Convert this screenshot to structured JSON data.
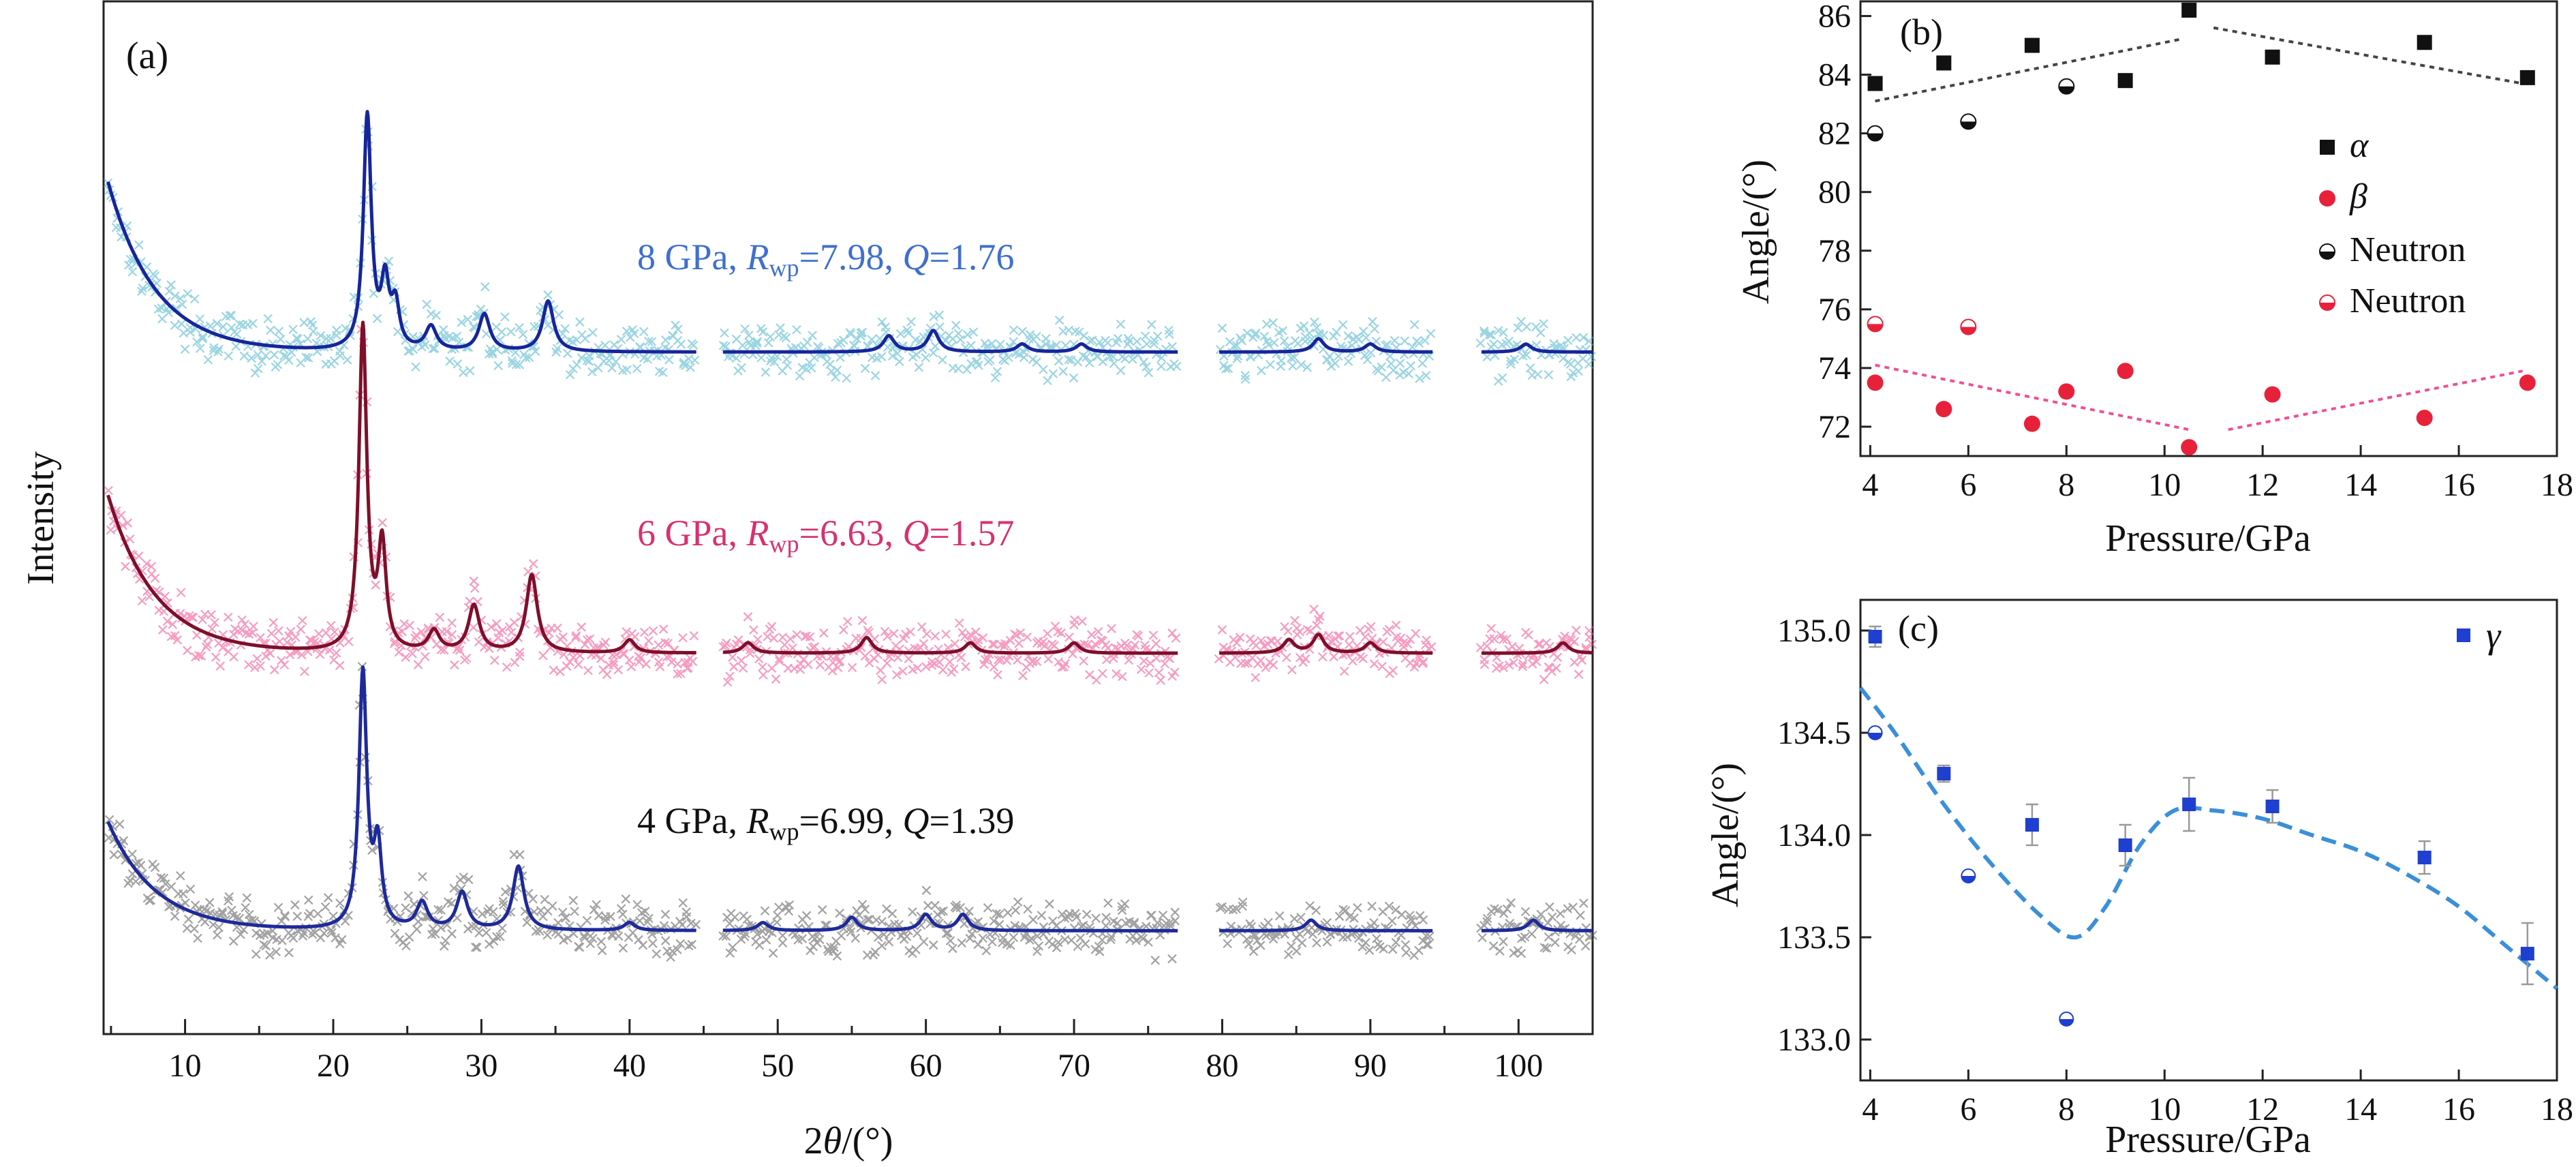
{
  "chart_data": [
    {
      "panel": "(a)",
      "type": "line",
      "xlabel_prefix": "2",
      "xlabel_var": "θ",
      "xlabel_suffix": "/(°)",
      "ylabel": "Intensity",
      "xlim": [
        4.5,
        105
      ],
      "xticks": [
        "10",
        "20",
        "30",
        "40",
        "50",
        "60",
        "70",
        "80",
        "90",
        "100"
      ],
      "series": [
        {
          "name": "8 GPa",
          "rwp": "7.98",
          "q": "1.76",
          "fit_color": "#17259a",
          "obs_color": "#49b3c9",
          "label_color": "#3f6fd0",
          "segments": [
            [
              4.8,
              44.5
            ],
            [
              46.3,
              77
            ],
            [
              79.8,
              94.2
            ],
            [
              97.5,
              105
            ]
          ],
          "peaks": [
            [
              22.3,
              88
            ],
            [
              23.5,
              24
            ],
            [
              24.2,
              16
            ],
            [
              26.6,
              9
            ],
            [
              30.2,
              14
            ],
            [
              34.5,
              19
            ],
            [
              57.5,
              6
            ],
            [
              60.5,
              8
            ],
            [
              66.5,
              3
            ],
            [
              70.5,
              3
            ],
            [
              86.5,
              5
            ],
            [
              90,
              3
            ],
            [
              100.5,
              3
            ]
          ],
          "bg_start": 70,
          "bg_floor": 6
        },
        {
          "name": "6 GPa",
          "rwp": "6.63",
          "q": "1.57",
          "fit_color": "#7e0f2a",
          "obs_color": "#ee4a8c",
          "label_color": "#d8316f",
          "segments": [
            [
              4.8,
              44.5
            ],
            [
              46.3,
              77
            ],
            [
              79.8,
              94.2
            ],
            [
              97.5,
              105
            ]
          ],
          "peaks": [
            [
              22.0,
              125
            ],
            [
              23.3,
              40
            ],
            [
              26.8,
              8
            ],
            [
              29.5,
              18
            ],
            [
              33.4,
              30
            ],
            [
              40,
              5
            ],
            [
              48,
              4
            ],
            [
              56,
              6
            ],
            [
              63,
              4
            ],
            [
              70,
              4
            ],
            [
              84.5,
              5
            ],
            [
              86.5,
              7
            ],
            [
              90,
              4
            ],
            [
              103,
              4
            ]
          ],
          "bg_start": 68,
          "bg_floor": 7
        },
        {
          "name": "4 GPa",
          "rwp": "6.99",
          "q": "1.39",
          "fit_color": "#1e2a9a",
          "obs_color": "#555555",
          "label_color": "#111111",
          "segments": [
            [
              4.8,
              44.5
            ],
            [
              46.3,
              77
            ],
            [
              79.8,
              94.2
            ],
            [
              97.5,
              105
            ]
          ],
          "peaks": [
            [
              22.0,
              96
            ],
            [
              23.0,
              30
            ],
            [
              26.0,
              10
            ],
            [
              28.7,
              14
            ],
            [
              32.5,
              24
            ],
            [
              40,
              3
            ],
            [
              49,
              3
            ],
            [
              55,
              5
            ],
            [
              60,
              6
            ],
            [
              62.5,
              6
            ],
            [
              86,
              4
            ],
            [
              101,
              4
            ]
          ],
          "bg_start": 46,
          "bg_floor": 5
        }
      ]
    },
    {
      "panel": "(b)",
      "type": "scatter",
      "xlabel": "Pressure/GPa",
      "ylabel": "Angle/(°)",
      "xlim": [
        3.8,
        18
      ],
      "ylim": [
        71,
        86.5
      ],
      "xticks": [
        "4",
        "6",
        "8",
        "10",
        "12",
        "14",
        "16",
        "18"
      ],
      "yticks": [
        "72",
        "74",
        "76",
        "78",
        "80",
        "82",
        "84",
        "86"
      ],
      "series": [
        {
          "name": "α",
          "marker": "square",
          "color": "#111111",
          "x": [
            4.1,
            5.5,
            7.3,
            9.2,
            10.5,
            12.2,
            15.3,
            17.4
          ],
          "y": [
            83.7,
            84.4,
            85.0,
            83.8,
            86.2,
            84.6,
            85.1,
            83.9
          ]
        },
        {
          "name": "β",
          "marker": "circle",
          "color": "#e8213a",
          "x": [
            4.1,
            5.5,
            7.3,
            8.0,
            9.2,
            10.5,
            12.2,
            15.3,
            17.4
          ],
          "y": [
            73.5,
            72.6,
            72.1,
            73.2,
            73.9,
            71.3,
            73.1,
            72.3,
            73.5
          ]
        },
        {
          "name": "Neutron",
          "marker": "halfcircle",
          "color": "#111111",
          "x": [
            4.1,
            6.0,
            8.0
          ],
          "y": [
            82.0,
            82.4,
            83.6
          ]
        },
        {
          "name": "Neutron",
          "marker": "halfcircle",
          "color": "#e8213a",
          "x": [
            4.1,
            6.0
          ],
          "y": [
            75.5,
            75.4
          ]
        }
      ],
      "trend_lines": [
        {
          "color": "#444444",
          "x": [
            4.1,
            10.3
          ],
          "y": [
            83.1,
            85.2
          ]
        },
        {
          "color": "#444444",
          "x": [
            11.0,
            17.3
          ],
          "y": [
            85.6,
            83.7
          ]
        },
        {
          "color": "#ee4f95",
          "x": [
            4.1,
            10.5
          ],
          "y": [
            74.1,
            71.9
          ]
        },
        {
          "color": "#ee4f95",
          "x": [
            11.3,
            17.3
          ],
          "y": [
            71.9,
            73.9
          ]
        }
      ]
    },
    {
      "panel": "(c)",
      "type": "scatter",
      "xlabel": "Pressure/GPa",
      "ylabel": "Angle/(°)",
      "xlim": [
        3.8,
        18
      ],
      "ylim": [
        132.8,
        135.15
      ],
      "xticks": [
        "4",
        "6",
        "8",
        "10",
        "12",
        "14",
        "16",
        "18"
      ],
      "yticks": [
        "133.0",
        "133.5",
        "134.0",
        "134.5",
        "135.0"
      ],
      "series": [
        {
          "name": "γ",
          "marker": "square",
          "color": "#1f3fd0",
          "x": [
            4.1,
            5.5,
            7.3,
            9.2,
            10.5,
            12.2,
            15.3,
            17.4
          ],
          "y": [
            134.97,
            134.3,
            134.05,
            133.95,
            134.15,
            134.14,
            133.89,
            133.42
          ],
          "err": [
            0.05,
            0.04,
            0.1,
            0.1,
            0.13,
            0.08,
            0.08,
            0.15
          ]
        },
        {
          "name": "Neutron",
          "marker": "halfcircle",
          "color": "#1f3fd0",
          "x": [
            4.1,
            6.0,
            8.0
          ],
          "y": [
            134.5,
            133.8,
            133.1
          ]
        }
      ],
      "fit_curve": {
        "color": "#3b8fd9",
        "x": [
          3.8,
          4.5,
          5.5,
          6.5,
          7.5,
          8.2,
          8.8,
          9.5,
          10.2,
          11.0,
          12.0,
          13.0,
          14.0,
          15.0,
          16.0,
          17.0,
          18.0
        ],
        "y": [
          134.72,
          134.5,
          134.15,
          133.85,
          133.6,
          133.5,
          133.65,
          133.95,
          134.12,
          134.12,
          134.08,
          134.0,
          133.92,
          133.8,
          133.65,
          133.45,
          133.25
        ]
      }
    }
  ]
}
